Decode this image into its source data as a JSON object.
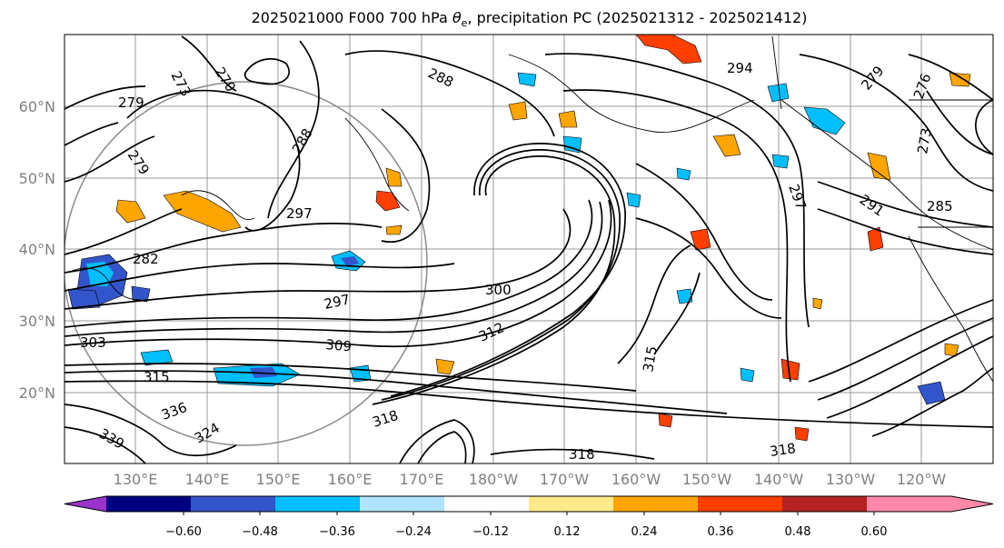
{
  "title": {
    "prefix": "2025021000 F000 700 hPa ",
    "theta_e": "θ",
    "theta_e_sub": "e",
    "suffix": ", precipitation PC (2025021312 - 2025021412)"
  },
  "map": {
    "lat_labels": [
      "60°N",
      "50°N",
      "40°N",
      "30°N",
      "20°N"
    ],
    "lon_labels": [
      "130°E",
      "140°E",
      "150°E",
      "160°E",
      "170°E",
      "180°W",
      "170°W",
      "160°W",
      "150°W",
      "140°W",
      "130°W",
      "120°W"
    ],
    "contour_labels": [
      "273",
      "270",
      "279",
      "279",
      "282",
      "288",
      "288",
      "297",
      "297",
      "300",
      "309",
      "312",
      "303",
      "315",
      "318",
      "318",
      "318",
      "294",
      "297",
      "279",
      "276",
      "273",
      "285",
      "291",
      "315",
      "336",
      "339",
      "324"
    ]
  },
  "colorbar": {
    "ticks": [
      "−0.60",
      "−0.48",
      "−0.36",
      "−0.24",
      "−0.12",
      "0.12",
      "0.24",
      "0.36",
      "0.48",
      "0.60"
    ],
    "colors": [
      "#9933cc",
      "#000080",
      "#3355cc",
      "#00bfff",
      "#aee4ff",
      "#ffffff",
      "#ffe98a",
      "#ffa500",
      "#ff3f00",
      "#b22222",
      "#ff88aa",
      "#ff88aa"
    ]
  }
}
